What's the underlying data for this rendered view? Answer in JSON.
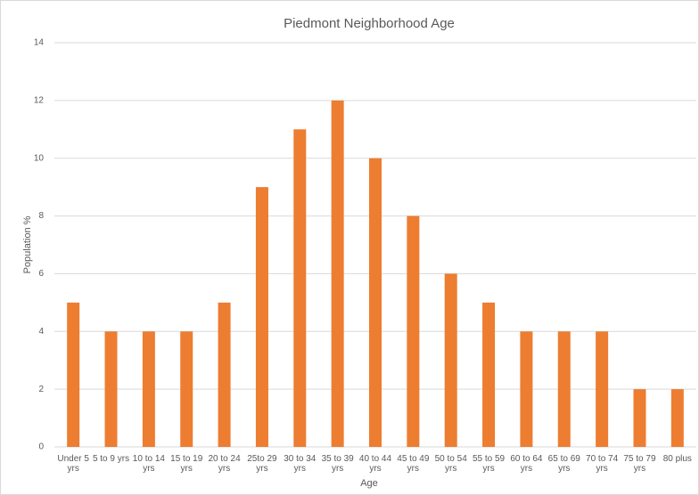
{
  "chart_data": {
    "type": "bar",
    "title": "Piedmont Neighborhood Age",
    "x_label": "Age",
    "y_label": "Population %",
    "categories": [
      "Under 5 yrs",
      "5 to 9 yrs",
      "10 to 14 yrs",
      "15 to 19 yrs",
      "20 to 24 yrs",
      "25to 29 yrs",
      "30 to 34 yrs",
      "35 to 39 yrs",
      "40 to 44 yrs",
      "45 to 49 yrs",
      "50 to 54 yrs",
      "55 to 59 yrs",
      "60 to 64 yrs",
      "65 to 69 yrs",
      "70 to 74 yrs",
      "75 to 79 yrs",
      "80 plus"
    ],
    "values": [
      5,
      4,
      4,
      4,
      5,
      9,
      11,
      12,
      10,
      8,
      6,
      5,
      4,
      4,
      4,
      2,
      2
    ],
    "color": "#ed7d31",
    "ylim": [
      0,
      14
    ],
    "yticks": [
      0,
      2,
      4,
      6,
      8,
      10,
      12,
      14
    ],
    "grid": true
  }
}
